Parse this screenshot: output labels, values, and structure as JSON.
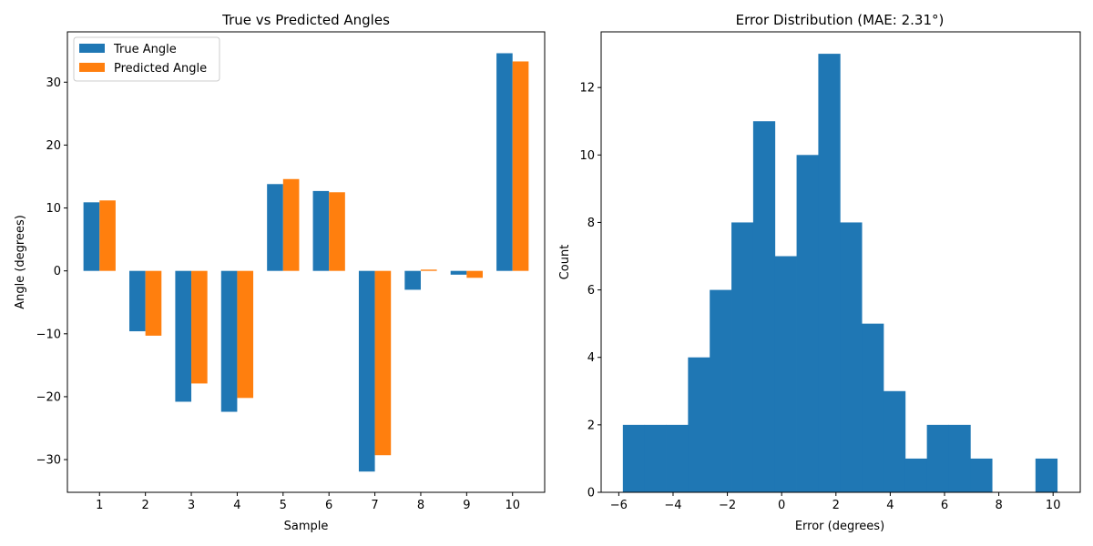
{
  "chart_data": [
    {
      "type": "bar",
      "title": "True vs Predicted Angles",
      "xlabel": "Sample",
      "ylabel": "Angle (degrees)",
      "categories": [
        "1",
        "2",
        "3",
        "4",
        "5",
        "6",
        "7",
        "8",
        "9",
        "10"
      ],
      "series": [
        {
          "name": "True Angle",
          "color": "#1f77b4",
          "values": [
            10.9,
            -9.6,
            -20.8,
            -22.4,
            13.8,
            12.7,
            -31.9,
            -3.0,
            -0.6,
            34.6
          ]
        },
        {
          "name": "Predicted Angle",
          "color": "#ff7f0e",
          "values": [
            11.2,
            -10.3,
            -17.9,
            -20.2,
            14.6,
            12.5,
            -29.3,
            0.2,
            -1.1,
            33.3
          ]
        }
      ],
      "ylim": [
        -35.2,
        38
      ],
      "yticks": [
        -30,
        -20,
        -10,
        0,
        10,
        20,
        30
      ],
      "ytick_labels": [
        "−30",
        "−20",
        "−10",
        "0",
        "10",
        "20",
        "30"
      ],
      "legend_position": "top-left",
      "grid": false
    },
    {
      "type": "bar",
      "title": "Error Distribution (MAE: 2.31°)",
      "xlabel": "Error (degrees)",
      "ylabel": "Count",
      "bin_edges": [
        -5.85,
        -5.05,
        -4.25,
        -3.45,
        -2.65,
        -1.85,
        -1.05,
        -0.25,
        0.55,
        1.35,
        2.15,
        2.95,
        3.75,
        4.55,
        5.35,
        6.15,
        6.95,
        7.75,
        8.55,
        9.35,
        10.15
      ],
      "values": [
        2,
        2,
        2,
        4,
        6,
        8,
        11,
        7,
        10,
        13,
        8,
        5,
        3,
        1,
        2,
        2,
        1,
        0,
        0,
        1
      ],
      "color": "#1f77b4",
      "xlim": [
        -6.65,
        11.0
      ],
      "ylim": [
        0,
        13.65
      ],
      "xticks": [
        -6,
        -4,
        -2,
        0,
        2,
        4,
        6,
        8,
        10
      ],
      "xtick_labels": [
        "−6",
        "−4",
        "−2",
        "0",
        "2",
        "4",
        "6",
        "8",
        "10"
      ],
      "yticks": [
        0,
        2,
        4,
        6,
        8,
        10,
        12
      ],
      "ytick_labels": [
        "0",
        "2",
        "4",
        "6",
        "8",
        "10",
        "12"
      ],
      "grid": false
    }
  ]
}
